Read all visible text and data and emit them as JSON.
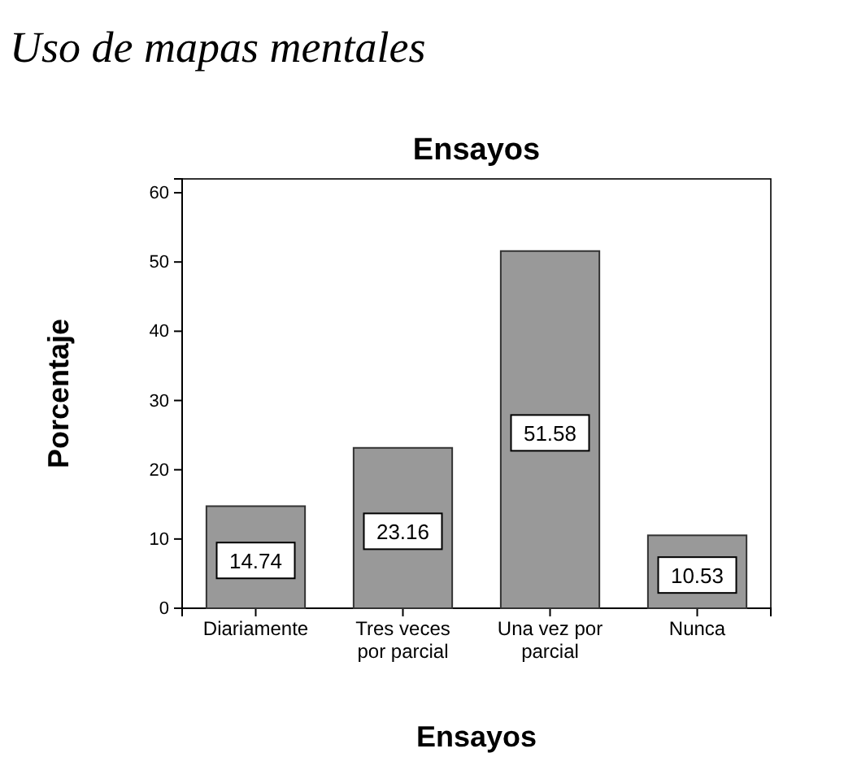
{
  "chart_data": {
    "type": "bar",
    "annotations": [
      "Uso de mapas mentales"
    ],
    "title": "Ensayos",
    "xlabel": "Ensayos",
    "ylabel": "Porcentaje",
    "categories": [
      "Diariamente",
      "Tres veces por parcial",
      "Una vez por parcial",
      "Nunca"
    ],
    "values": [
      14.74,
      23.16,
      51.58,
      10.53
    ],
    "color": "#999999",
    "ylim": [
      0,
      62
    ],
    "yticks": [
      0,
      10,
      20,
      30,
      40,
      50,
      60
    ],
    "data_labels": true,
    "grid": false
  }
}
